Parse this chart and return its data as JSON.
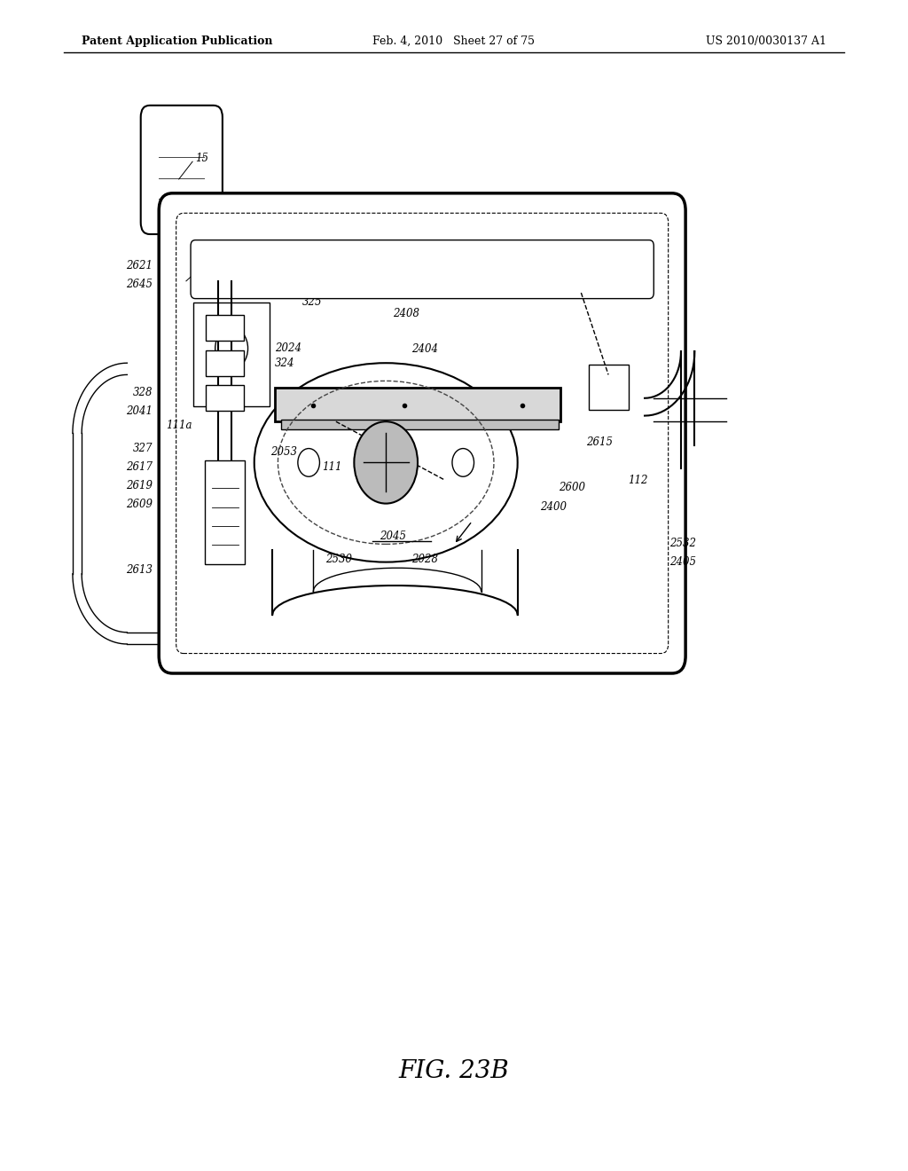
{
  "background_color": "#ffffff",
  "header_left": "Patent Application Publication",
  "header_mid": "Feb. 4, 2010   Sheet 27 of 75",
  "header_right": "US 2010/0030137 A1",
  "figure_label": "FIG. 23B"
}
